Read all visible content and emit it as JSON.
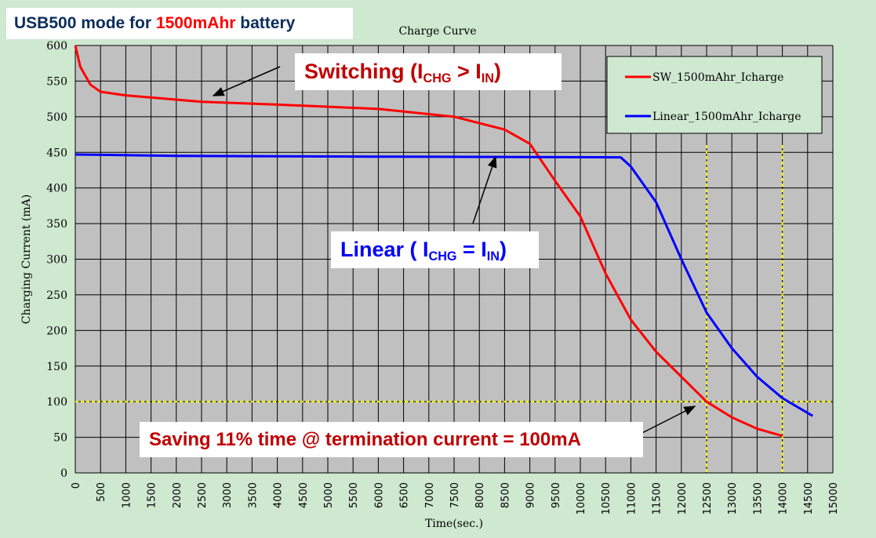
{
  "banner": {
    "part1": "USB500 mode for ",
    "part2": "1500mAhr",
    "part3": " battery",
    "color_dark": "#0b2d5a",
    "color_red": "#ff0000"
  },
  "annotations": {
    "switching": {
      "pre": "Switching (I",
      "sub1": "CHG",
      "mid": " > I",
      "sub2": "IN",
      "post": ")",
      "color": "#c00000"
    },
    "linear": {
      "pre": "Linear ( I",
      "sub1": "CHG",
      "mid": " = I",
      "sub2": "IN",
      "post": ")",
      "color": "#0000ff"
    },
    "saving": {
      "text": "Saving 11% time @ termination current = 100mA",
      "color": "#c00000"
    }
  },
  "chart_data": {
    "type": "line",
    "title": "Charge Curve",
    "xlabel": "Time(sec.)",
    "ylabel": "Charging Current (mA)",
    "xlim": [
      0,
      15000
    ],
    "ylim": [
      0,
      600
    ],
    "xticks": [
      0,
      500,
      1000,
      1500,
      2000,
      2500,
      3000,
      3500,
      4000,
      4500,
      5000,
      5500,
      6000,
      6500,
      7000,
      7500,
      8000,
      8500,
      9000,
      9500,
      10000,
      10500,
      11000,
      11500,
      12000,
      12500,
      13000,
      13500,
      14000,
      14500,
      15000
    ],
    "yticks": [
      0,
      50,
      100,
      150,
      200,
      250,
      300,
      350,
      400,
      450,
      500,
      550,
      600
    ],
    "grid": true,
    "legend_position": "top-right",
    "series": [
      {
        "name": "SW_1500mAhr_Icharge",
        "color": "#ff0000",
        "x": [
          0,
          100,
          300,
          500,
          1000,
          2500,
          4000,
          6000,
          7500,
          8500,
          9000,
          9500,
          10000,
          10500,
          11000,
          11500,
          12000,
          12500,
          13000,
          13500,
          14000
        ],
        "y": [
          600,
          570,
          545,
          535,
          530,
          521,
          517,
          511,
          500,
          482,
          462,
          410,
          360,
          280,
          215,
          170,
          135,
          100,
          78,
          62,
          52
        ]
      },
      {
        "name": "Linear_1500mAhr_Icharge",
        "color": "#0000ff",
        "x": [
          0,
          2000,
          6000,
          10800,
          11000,
          11500,
          12000,
          12500,
          13000,
          13500,
          14000,
          14600
        ],
        "y": [
          447,
          445,
          444,
          443,
          430,
          380,
          300,
          225,
          175,
          135,
          105,
          80
        ]
      }
    ],
    "reference_lines": {
      "horizontal_y": 100,
      "vertical_x": [
        12500,
        14000
      ],
      "color": "#ffff00"
    }
  }
}
